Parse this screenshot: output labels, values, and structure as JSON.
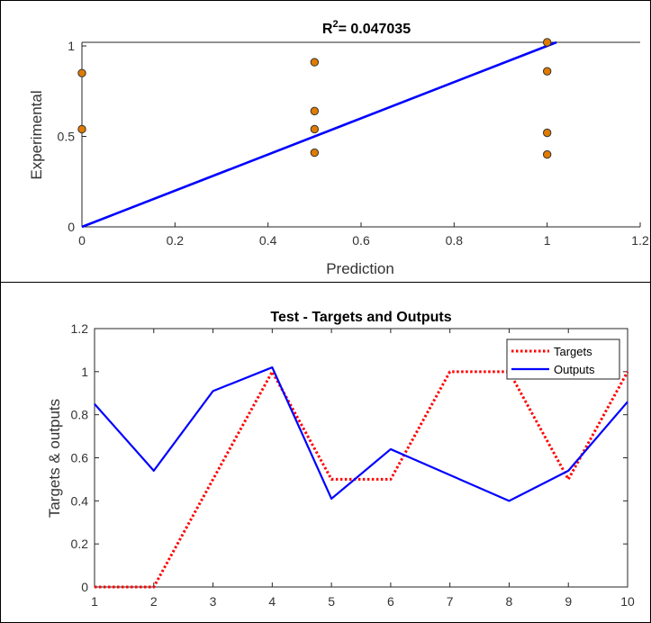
{
  "chart_data": [
    {
      "type": "scatter",
      "title_prefix": "R",
      "title_sup": "2",
      "title_suffix": "= 0.047035",
      "xlabel": "Prediction",
      "ylabel": "Experimental",
      "xlim": [
        0,
        1.2
      ],
      "ylim": [
        0,
        1.02
      ],
      "xticks": [
        0,
        0.2,
        0.4,
        0.6,
        0.8,
        1,
        1.2
      ],
      "xtick_labels": [
        "0",
        "0.2",
        "0.4",
        "0.6",
        "0.8",
        "1",
        "1.2"
      ],
      "yticks": [
        0,
        0.5,
        1
      ],
      "ytick_labels": [
        "0",
        "0.5",
        "1"
      ],
      "points": [
        {
          "x": 0,
          "y": 0.85
        },
        {
          "x": 0,
          "y": 0.54
        },
        {
          "x": 0.5,
          "y": 0.91
        },
        {
          "x": 0.5,
          "y": 0.64
        },
        {
          "x": 0.5,
          "y": 0.54
        },
        {
          "x": 0.5,
          "y": 0.41
        },
        {
          "x": 1,
          "y": 1.02
        },
        {
          "x": 1,
          "y": 0.86
        },
        {
          "x": 1,
          "y": 0.52
        },
        {
          "x": 1,
          "y": 0.4
        }
      ],
      "fit_line": [
        {
          "x": 0,
          "y": 0
        },
        {
          "x": 1.02,
          "y": 1.02
        }
      ],
      "marker_color": "#e07b00",
      "line_color": "#0000ff"
    },
    {
      "type": "line",
      "title": "Test - Targets and Outputs",
      "xlabel": "",
      "ylabel": "Targets & outputs",
      "xlim": [
        1,
        10
      ],
      "ylim": [
        0,
        1.2
      ],
      "xticks": [
        1,
        2,
        3,
        4,
        5,
        6,
        7,
        8,
        9,
        10
      ],
      "xtick_labels": [
        "1",
        "2",
        "3",
        "4",
        "5",
        "6",
        "7",
        "8",
        "9",
        "10"
      ],
      "yticks": [
        0,
        0.2,
        0.4,
        0.6,
        0.8,
        1,
        1.2
      ],
      "ytick_labels": [
        "0",
        "0.2",
        "0.4",
        "0.6",
        "0.8",
        "1",
        "1.2"
      ],
      "x": [
        1,
        2,
        3,
        4,
        5,
        6,
        7,
        8,
        9,
        10
      ],
      "series": [
        {
          "name": "Targets",
          "values": [
            0,
            0,
            0.5,
            1,
            0.5,
            0.5,
            1,
            1,
            0.5,
            1
          ],
          "color": "#ff0000",
          "dash": "dotted"
        },
        {
          "name": "Outputs",
          "values": [
            0.85,
            0.54,
            0.91,
            1.02,
            0.41,
            0.64,
            0.52,
            0.4,
            0.54,
            0.86
          ],
          "color": "#0000ff",
          "dash": "solid"
        }
      ],
      "legend": "top-right",
      "grid": false
    }
  ]
}
